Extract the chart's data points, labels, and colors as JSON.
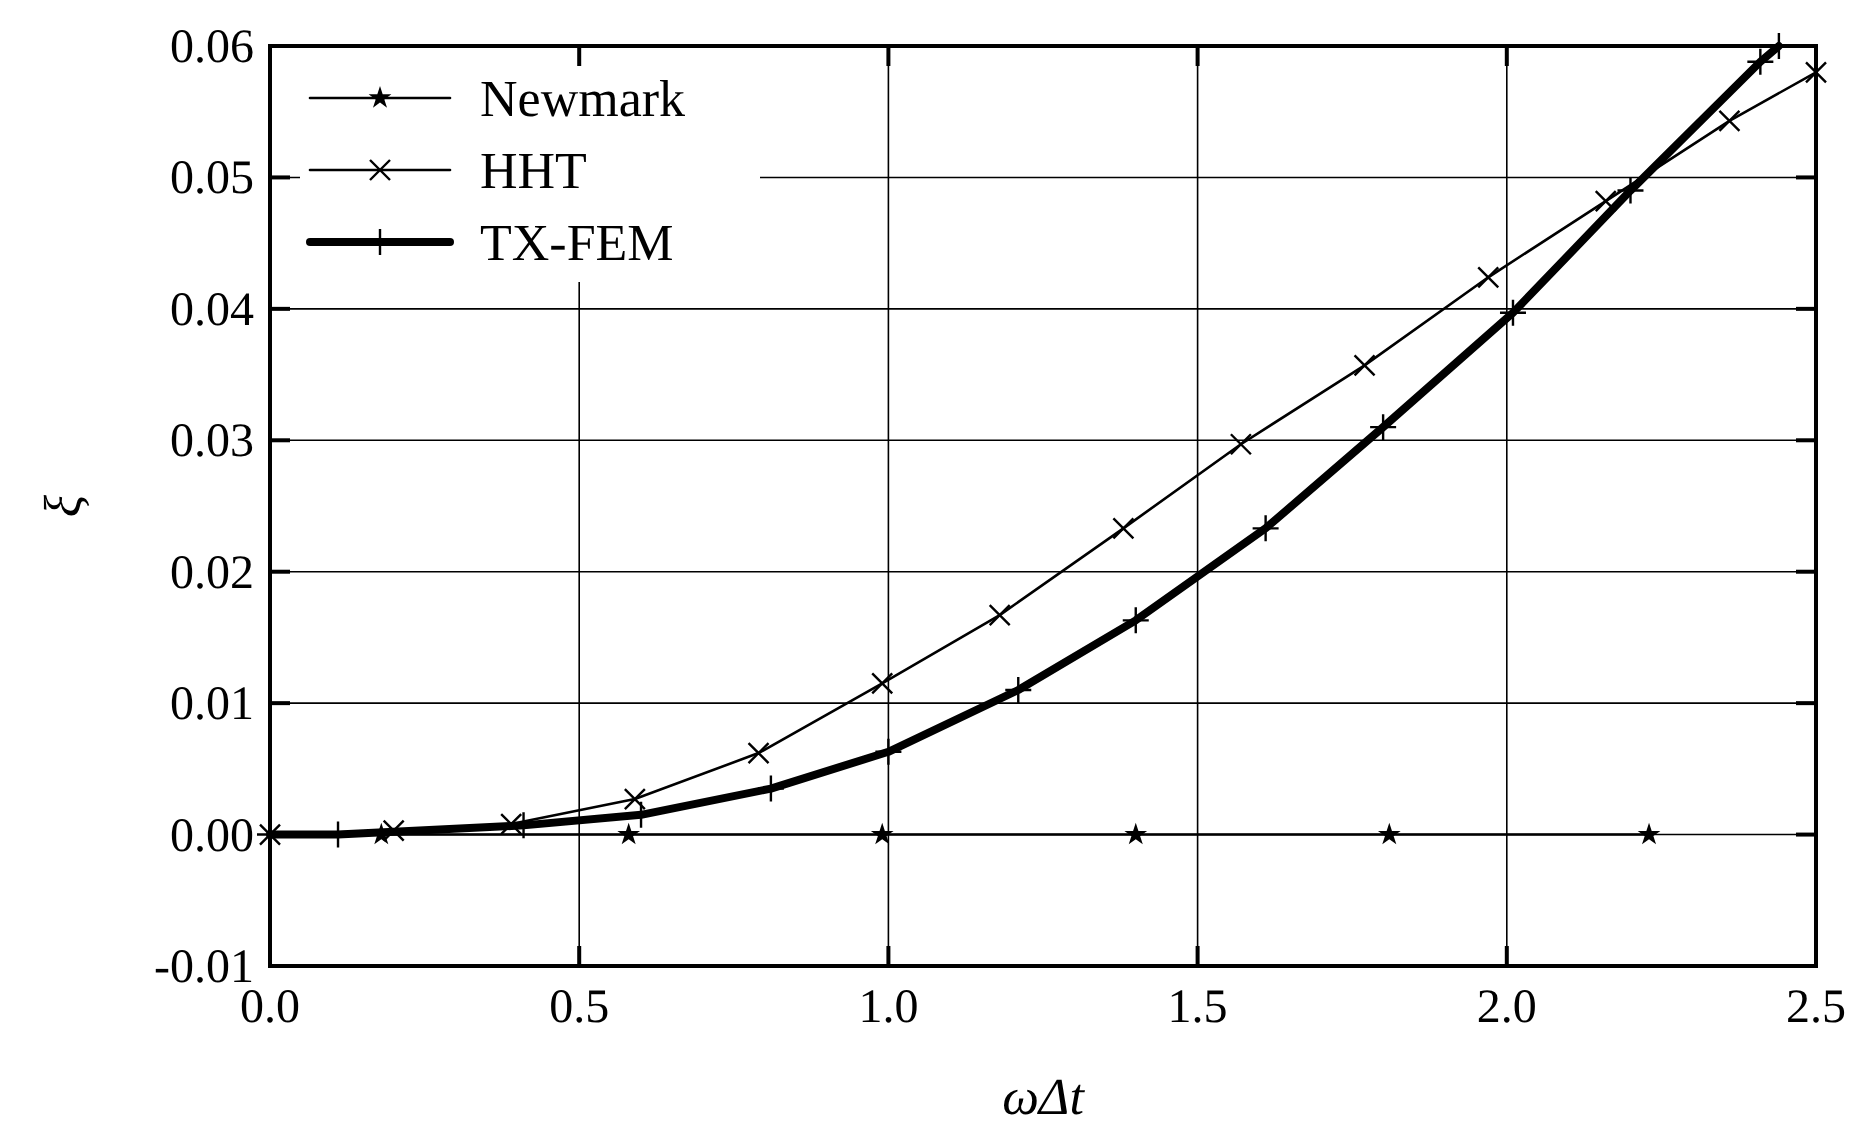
{
  "chart_data": {
    "type": "line",
    "xlabel": "ωΔt",
    "ylabel": "ξ",
    "xlim": [
      0,
      2.5
    ],
    "ylim": [
      -0.01,
      0.06
    ],
    "xticks": [
      {
        "value": 0,
        "label": "0.0"
      },
      {
        "value": 0.5,
        "label": "0.5"
      },
      {
        "value": 1,
        "label": "1.0"
      },
      {
        "value": 1.5,
        "label": "1.5"
      },
      {
        "value": 2,
        "label": "2.0"
      },
      {
        "value": 2.5,
        "label": "2.5"
      }
    ],
    "yticks": [
      {
        "value": -0.01,
        "label": "-0.01"
      },
      {
        "value": 0,
        "label": "0.00"
      },
      {
        "value": 0.01,
        "label": "0.01"
      },
      {
        "value": 0.02,
        "label": "0.02"
      },
      {
        "value": 0.03,
        "label": "0.03"
      },
      {
        "value": 0.04,
        "label": "0.04"
      },
      {
        "value": 0.05,
        "label": "0.05"
      },
      {
        "value": 0.06,
        "label": "0.06"
      }
    ],
    "grid": true,
    "legend": "top left",
    "line_style": "solid",
    "series": [
      {
        "name": "Newmark",
        "color": "#000000",
        "marker": "star",
        "x": [
          0.18,
          0.58,
          0.99,
          1.4,
          1.81,
          2.23
        ],
        "values": [
          0,
          0,
          0,
          0,
          0,
          0
        ]
      },
      {
        "name": "HHT",
        "color": "#000000",
        "marker": "cross",
        "x": [
          0,
          0.2,
          0.39,
          0.59,
          0.79,
          0.99,
          1.18,
          1.38,
          1.57,
          1.77,
          1.97,
          2.16,
          2.36,
          2.5
        ],
        "values": [
          0,
          0.0003,
          0.0008,
          0.0027,
          0.0062,
          0.0115,
          0.0167,
          0.0233,
          0.0297,
          0.0357,
          0.0424,
          0.0482,
          0.0543,
          0.058
        ]
      },
      {
        "name": "TX-FEM",
        "color": "#000000",
        "marker": "plus",
        "x": [
          0,
          0.11,
          0.41,
          0.6,
          0.81,
          1.0,
          1.21,
          1.4,
          1.61,
          1.8,
          2.01,
          2.2,
          2.41,
          2.44
        ],
        "values": [
          0,
          0,
          0.0007,
          0.0015,
          0.0035,
          0.0063,
          0.011,
          0.0163,
          0.0233,
          0.031,
          0.0397,
          0.049,
          0.0588,
          0.06
        ]
      }
    ]
  }
}
